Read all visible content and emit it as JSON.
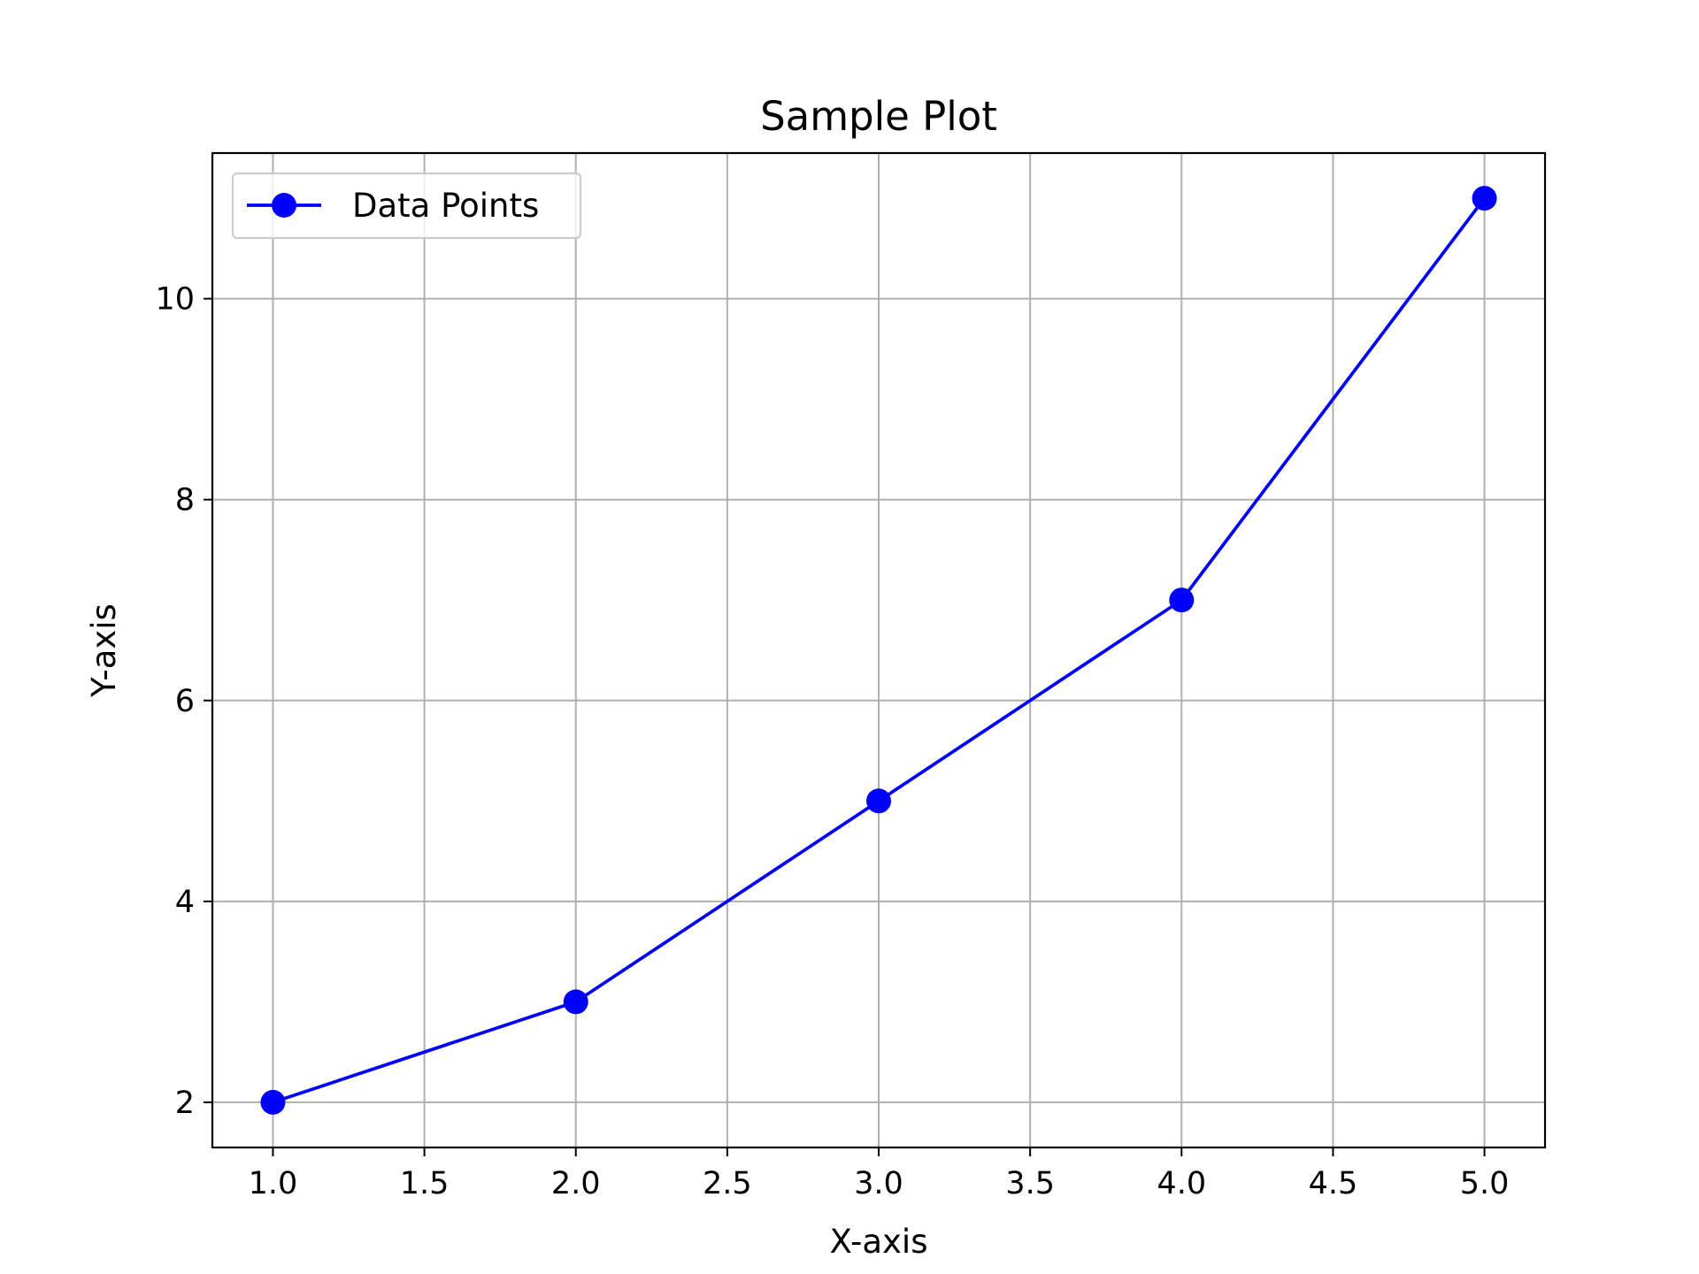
{
  "chart_data": {
    "type": "line",
    "title": "Sample Plot",
    "xlabel": "X-axis",
    "ylabel": "Y-axis",
    "xlim": [
      0.8,
      5.2
    ],
    "ylim": [
      1.55,
      11.45
    ],
    "xticks": [
      1.0,
      1.5,
      2.0,
      2.5,
      3.0,
      3.5,
      4.0,
      4.5,
      5.0
    ],
    "xtick_labels": [
      "1.0",
      "1.5",
      "2.0",
      "2.5",
      "3.0",
      "3.5",
      "4.0",
      "4.5",
      "5.0"
    ],
    "yticks": [
      2,
      4,
      6,
      8,
      10
    ],
    "ytick_labels": [
      "2",
      "4",
      "6",
      "8",
      "10"
    ],
    "grid": true,
    "legend_position": "top-left",
    "series": [
      {
        "name": "Data Points",
        "x": [
          1,
          2,
          3,
          4,
          5
        ],
        "y": [
          2,
          3,
          5,
          7,
          11
        ],
        "color": "#0000ff",
        "marker": "circle"
      }
    ]
  },
  "colors": {
    "grid": "#b0b0b0",
    "axes": "#000000",
    "legend_border": "#cccccc",
    "background": "#ffffff"
  }
}
